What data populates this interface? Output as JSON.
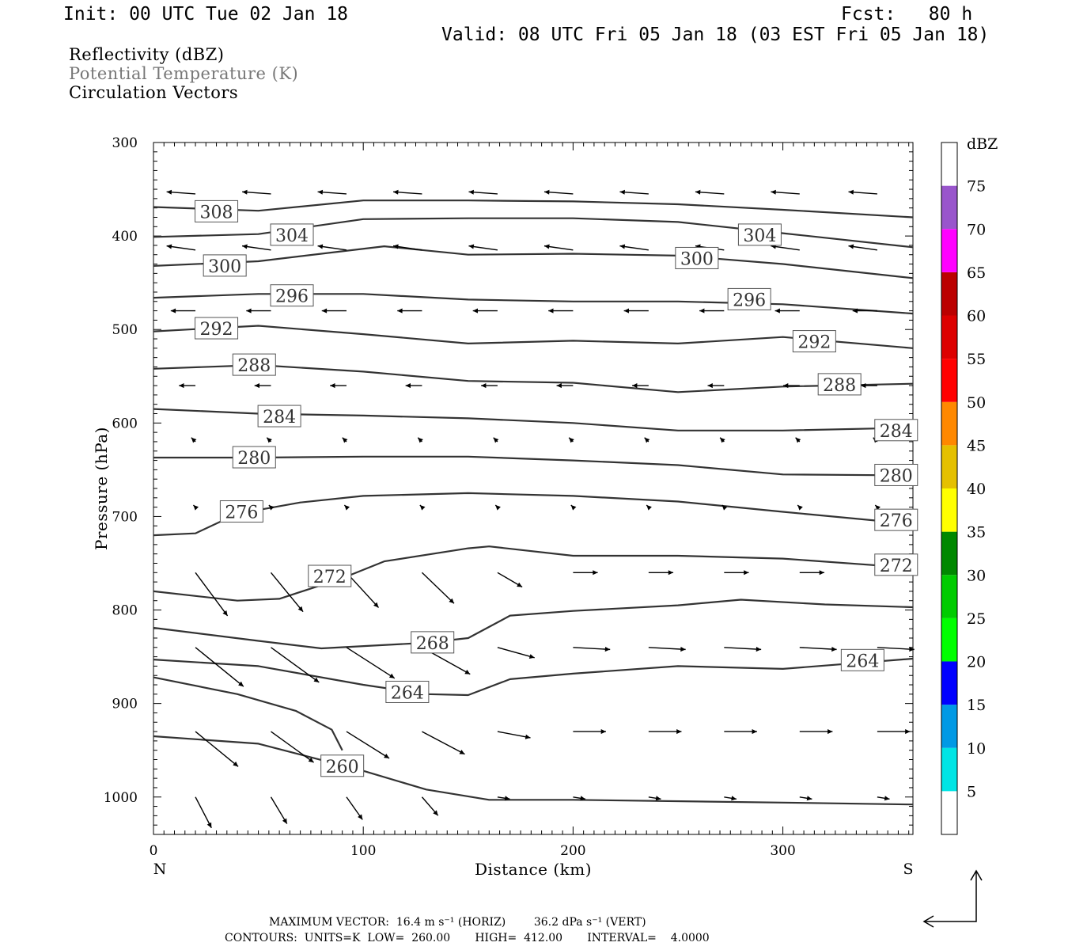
{
  "header": {
    "init": "Init: 00 UTC Tue 02 Jan 18",
    "fcst": "Fcst:   80 h",
    "valid": "Valid: 08 UTC Fri 05 Jan 18 (03 EST Fri 05 Jan 18)"
  },
  "legend": {
    "line1": "Reflectivity (dBZ)",
    "line2": "Potential Temperature (K)",
    "line3": "Circulation Vectors"
  },
  "colorbar": {
    "title": "dBZ",
    "levels": [
      5,
      10,
      15,
      20,
      25,
      30,
      35,
      40,
      45,
      50,
      55,
      60,
      65,
      70,
      75
    ],
    "colors": [
      "#ffffff",
      "#00e5e5",
      "#0099e5",
      "#0000ff",
      "#00ff00",
      "#00cc00",
      "#008800",
      "#ffff00",
      "#e5c000",
      "#ff8800",
      "#ff0000",
      "#dd0000",
      "#bb0000",
      "#ff00ff",
      "#9955cc",
      "#ffffff"
    ]
  },
  "footer": {
    "line1": "MAXIMUM VECTOR:  16.4 m s⁻¹ (HORIZ)        36.2 dPa s⁻¹ (VERT)",
    "line2": "CONTOURS:  UNITS=K  LOW=  260.00       HIGH=  412.00       INTERVAL=    4.0000"
  },
  "chart_data": {
    "type": "line",
    "title": "",
    "xlabel": "Distance (km)",
    "ylabel": "Pressure (hPa)",
    "xlim": [
      0,
      362
    ],
    "ylim": [
      1040,
      300
    ],
    "x_ticks": [
      0,
      100,
      200,
      300
    ],
    "y_ticks": [
      300,
      400,
      500,
      600,
      700,
      800,
      900,
      1000
    ],
    "x_end_labels": {
      "left": "N",
      "right": "S"
    },
    "series": [
      {
        "name": "308",
        "labels_at": [
          [
            30,
            374
          ]
        ],
        "points": [
          [
            0,
            369
          ],
          [
            50,
            373
          ],
          [
            100,
            362
          ],
          [
            150,
            362
          ],
          [
            200,
            363
          ],
          [
            250,
            366
          ],
          [
            300,
            372
          ],
          [
            362,
            380
          ]
        ]
      },
      {
        "name": "304",
        "labels_at": [
          [
            66,
            399
          ],
          [
            289,
            399
          ]
        ],
        "points": [
          [
            0,
            401
          ],
          [
            50,
            398
          ],
          [
            100,
            382
          ],
          [
            150,
            381
          ],
          [
            200,
            381
          ],
          [
            250,
            385
          ],
          [
            300,
            397
          ],
          [
            362,
            412
          ]
        ]
      },
      {
        "name": "300",
        "labels_at": [
          [
            34,
            432
          ],
          [
            259,
            424
          ]
        ],
        "points": [
          [
            0,
            432
          ],
          [
            50,
            427
          ],
          [
            110,
            411
          ],
          [
            150,
            420
          ],
          [
            200,
            419
          ],
          [
            250,
            421
          ],
          [
            300,
            430
          ],
          [
            362,
            445
          ]
        ]
      },
      {
        "name": "296",
        "labels_at": [
          [
            66,
            464
          ],
          [
            284,
            468
          ]
        ],
        "points": [
          [
            0,
            466
          ],
          [
            50,
            462
          ],
          [
            100,
            462
          ],
          [
            150,
            468
          ],
          [
            200,
            470
          ],
          [
            250,
            470
          ],
          [
            300,
            473
          ],
          [
            362,
            483
          ]
        ]
      },
      {
        "name": "292",
        "labels_at": [
          [
            30,
            499
          ],
          [
            315,
            513
          ]
        ],
        "points": [
          [
            0,
            502
          ],
          [
            50,
            496
          ],
          [
            100,
            505
          ],
          [
            150,
            515
          ],
          [
            200,
            512
          ],
          [
            250,
            515
          ],
          [
            300,
            508
          ],
          [
            362,
            520
          ]
        ]
      },
      {
        "name": "288",
        "labels_at": [
          [
            48,
            538
          ],
          [
            327,
            559
          ]
        ],
        "points": [
          [
            0,
            542
          ],
          [
            50,
            538
          ],
          [
            100,
            545
          ],
          [
            150,
            555
          ],
          [
            200,
            557
          ],
          [
            250,
            567
          ],
          [
            300,
            561
          ],
          [
            362,
            558
          ]
        ]
      },
      {
        "name": "284",
        "labels_at": [
          [
            60,
            593
          ],
          [
            354,
            608
          ]
        ],
        "points": [
          [
            0,
            585
          ],
          [
            50,
            590
          ],
          [
            100,
            592
          ],
          [
            150,
            595
          ],
          [
            200,
            600
          ],
          [
            250,
            608
          ],
          [
            300,
            608
          ],
          [
            362,
            605
          ]
        ]
      },
      {
        "name": "280",
        "labels_at": [
          [
            48,
            637
          ],
          [
            354,
            656
          ]
        ],
        "points": [
          [
            0,
            637
          ],
          [
            50,
            637
          ],
          [
            100,
            636
          ],
          [
            150,
            636
          ],
          [
            200,
            640
          ],
          [
            250,
            645
          ],
          [
            300,
            655
          ],
          [
            362,
            656
          ]
        ]
      },
      {
        "name": "276",
        "labels_at": [
          [
            42,
            695
          ],
          [
            354,
            704
          ]
        ],
        "points": [
          [
            0,
            720
          ],
          [
            20,
            718
          ],
          [
            40,
            697
          ],
          [
            70,
            685
          ],
          [
            100,
            678
          ],
          [
            150,
            675
          ],
          [
            200,
            678
          ],
          [
            250,
            684
          ],
          [
            300,
            695
          ],
          [
            362,
            708
          ]
        ]
      },
      {
        "name": "272",
        "labels_at": [
          [
            84,
            764
          ],
          [
            354,
            752
          ]
        ],
        "points": [
          [
            0,
            780
          ],
          [
            40,
            790
          ],
          [
            60,
            788
          ],
          [
            90,
            766
          ],
          [
            110,
            748
          ],
          [
            150,
            734
          ],
          [
            160,
            732
          ],
          [
            200,
            742
          ],
          [
            250,
            742
          ],
          [
            300,
            745
          ],
          [
            362,
            755
          ]
        ]
      },
      {
        "name": "268",
        "labels_at": [
          [
            133,
            835
          ]
        ],
        "points": [
          [
            0,
            819
          ],
          [
            50,
            833
          ],
          [
            80,
            841
          ],
          [
            130,
            835
          ],
          [
            150,
            830
          ],
          [
            170,
            806
          ],
          [
            200,
            801
          ],
          [
            250,
            795
          ],
          [
            280,
            789
          ],
          [
            320,
            794
          ],
          [
            362,
            797
          ]
        ]
      },
      {
        "name": "264",
        "labels_at": [
          [
            121,
            888
          ],
          [
            338,
            854
          ]
        ],
        "points": [
          [
            0,
            853
          ],
          [
            50,
            860
          ],
          [
            100,
            880
          ],
          [
            130,
            890
          ],
          [
            150,
            891
          ],
          [
            170,
            874
          ],
          [
            200,
            868
          ],
          [
            250,
            860
          ],
          [
            300,
            863
          ],
          [
            362,
            852
          ]
        ]
      },
      {
        "name": "260",
        "labels_at": [
          [
            90,
            967
          ]
        ],
        "points": [
          [
            0,
            935
          ],
          [
            50,
            943
          ],
          [
            100,
            972
          ],
          [
            130,
            992
          ],
          [
            160,
            1003
          ],
          [
            200,
            1003
          ],
          [
            300,
            1006
          ],
          [
            362,
            1008
          ]
        ]
      },
      {
        "name": "",
        "labels_at": [],
        "points": [
          [
            0,
            872
          ],
          [
            40,
            890
          ],
          [
            68,
            908
          ],
          [
            85,
            928
          ],
          [
            90,
            950
          ]
        ]
      }
    ],
    "vectors_note": "circulation vectors: easterly (leftward) flow aloft, westerly (rightward) flow below ~750 hPa"
  }
}
